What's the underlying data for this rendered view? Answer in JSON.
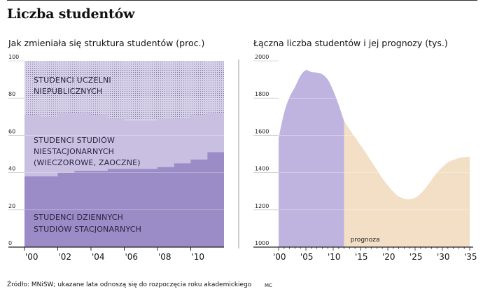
{
  "title": "Liczba studentów",
  "colors": {
    "private": "#d6d0e8",
    "extramural": "#c8bfe1",
    "fulltime": "#9b8bc6",
    "total_actual": "#bfb4e0",
    "total_forecast": "#f2dfc6",
    "axis": "#222222",
    "divider": "#999999"
  },
  "footer": {
    "source": "Źródło: MNiSW;  ukazane lata odnoszą się do rozpoczęcia roku akademickiego",
    "credit": "MC"
  },
  "chart_data": [
    {
      "type": "area",
      "stacked": true,
      "title": "Jak zmieniała się struktura studentów (proc.)",
      "x": [
        2000,
        2001,
        2002,
        2003,
        2004,
        2005,
        2006,
        2007,
        2008,
        2009,
        2010,
        2011
      ],
      "xticks": [
        2000,
        2002,
        2004,
        2006,
        2008,
        2010
      ],
      "xtick_labels": [
        "'00",
        "'02",
        "'04",
        "'06",
        "'08",
        "'10"
      ],
      "ylim": [
        0,
        100
      ],
      "yticks": [
        0,
        20,
        40,
        60,
        80,
        100
      ],
      "series": [
        {
          "name": "STUDENCI DZIENNYCH STUDIÓW STACJONARNYCH",
          "label_lines": [
            "STUDENCI DZIENNYCH",
            "STUDIÓW STACJONARNYCH"
          ],
          "values": [
            38,
            38,
            40,
            41,
            41,
            42,
            42,
            42,
            43,
            45,
            47,
            51
          ]
        },
        {
          "name": "STUDENCI STUDIÓW NIESTACJONARNYCH (WIECZOROWE, ZAOCZNE)",
          "label_lines": [
            "STUDENCI STUDIÓW",
            "NIESTACJONARNYCH",
            "(WIECZOROWE, ZAOCZNE)"
          ],
          "values": [
            33,
            32,
            32,
            31,
            30,
            27,
            26,
            26,
            26,
            24,
            24,
            21
          ]
        },
        {
          "name": "STUDENCI UCZELNI NIEPUBLICZNYCH",
          "label_lines": [
            "STUDENCI UCZELNI",
            "NIEPUBLICZNYCH"
          ],
          "values": [
            29,
            30,
            28,
            28,
            29,
            31,
            32,
            32,
            31,
            31,
            29,
            28
          ]
        }
      ]
    },
    {
      "type": "area",
      "title": "Łączna liczba studentów i jej prognozy (tys.)",
      "x": [
        2000,
        2001,
        2002,
        2003,
        2004,
        2005,
        2006,
        2007,
        2008,
        2009,
        2010,
        2011,
        2012,
        2013,
        2014,
        2015,
        2016,
        2017,
        2018,
        2019,
        2020,
        2021,
        2022,
        2023,
        2024,
        2025,
        2026,
        2027,
        2028,
        2029,
        2030,
        2031,
        2032,
        2033,
        2034,
        2035
      ],
      "values": [
        1585,
        1720,
        1805,
        1860,
        1920,
        1950,
        1940,
        1937,
        1928,
        1900,
        1841,
        1764,
        1676,
        1632,
        1590,
        1548,
        1505,
        1460,
        1415,
        1370,
        1332,
        1298,
        1272,
        1260,
        1258,
        1265,
        1287,
        1320,
        1360,
        1400,
        1430,
        1455,
        1468,
        1478,
        1483,
        1485
      ],
      "forecast_start": 2012,
      "forecast_label": "prognoza",
      "xlim": [
        2000,
        2035
      ],
      "xticks": [
        2000,
        2005,
        2010,
        2015,
        2020,
        2025,
        2030,
        2035
      ],
      "xtick_labels": [
        "'00",
        "'05",
        "'10",
        "'15",
        "'20",
        "'25",
        "'30",
        "'35"
      ],
      "ylim": [
        1000,
        2000
      ],
      "yticks": [
        1000,
        1200,
        1400,
        1600,
        1800,
        2000
      ]
    }
  ]
}
